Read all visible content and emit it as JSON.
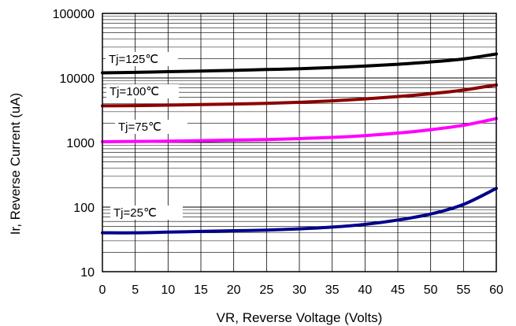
{
  "chart_data": {
    "type": "line",
    "xlabel": "VR, Reverse Voltage (Volts)",
    "ylabel": "Ir, Reverse Current (uA)",
    "xlim": [
      0,
      60
    ],
    "ylim": [
      10,
      100000
    ],
    "y_scale": "log",
    "grid": true,
    "x_ticks": [
      "0",
      "5",
      "10",
      "15",
      "20",
      "25",
      "30",
      "35",
      "40",
      "45",
      "50",
      "55",
      "60"
    ],
    "y_ticks": [
      "10",
      "100",
      "1000",
      "10000",
      "100000"
    ],
    "series": [
      {
        "name": "Tj=125℃",
        "color": "#000000",
        "x": [
          0,
          5,
          10,
          15,
          20,
          25,
          30,
          35,
          40,
          45,
          50,
          55,
          60
        ],
        "y": [
          12000,
          12200,
          12500,
          12800,
          13100,
          13500,
          13900,
          14500,
          15300,
          16300,
          17700,
          19700,
          23500
        ]
      },
      {
        "name": "Tj=100℃",
        "color": "#8b0000",
        "x": [
          0,
          5,
          10,
          15,
          20,
          25,
          30,
          35,
          40,
          45,
          50,
          55,
          60
        ],
        "y": [
          3700,
          3730,
          3800,
          3870,
          3950,
          4050,
          4200,
          4420,
          4730,
          5150,
          5700,
          6500,
          7800
        ]
      },
      {
        "name": "Tj=75℃",
        "color": "#ff00ff",
        "x": [
          0,
          5,
          10,
          15,
          20,
          25,
          30,
          35,
          40,
          45,
          50,
          55,
          60
        ],
        "y": [
          1030,
          1040,
          1050,
          1070,
          1090,
          1110,
          1150,
          1200,
          1280,
          1400,
          1580,
          1850,
          2350
        ]
      },
      {
        "name": "Tj=25℃",
        "color": "#00008b",
        "x": [
          0,
          5,
          10,
          15,
          20,
          25,
          30,
          35,
          40,
          45,
          50,
          55,
          60
        ],
        "y": [
          40,
          40,
          41,
          42,
          43,
          44,
          46,
          49,
          54,
          63,
          78,
          110,
          195
        ]
      }
    ]
  }
}
